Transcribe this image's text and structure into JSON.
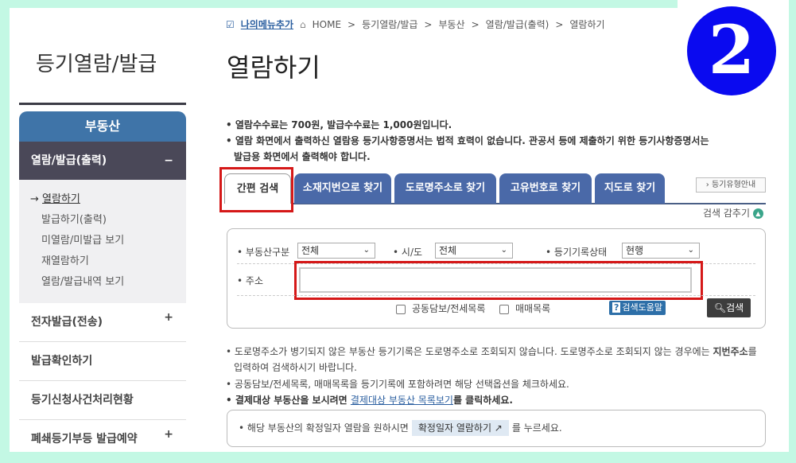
{
  "badge": "2",
  "sidebar": {
    "title": "등기열람/발급",
    "header": "부동산",
    "active_group": "열람/발급(출력)",
    "active_toggle": "−",
    "sub_items": [
      "열람하기",
      "발급하기(출력)",
      "미열람/미발급 보기",
      "재열람하기",
      "열람/발급내역 보기"
    ],
    "current_marker": "→",
    "items": [
      {
        "label": "전자발급(전송)",
        "toggle": "+"
      },
      {
        "label": "발급확인하기"
      },
      {
        "label": "등기신청사건처리현황"
      },
      {
        "label": "폐쇄등기부등 발급예약",
        "toggle": "+"
      }
    ]
  },
  "breadcrumb": {
    "fav": "나의메뉴추가",
    "items": [
      "HOME",
      "등기열람/발급",
      "부동산",
      "열람/발급(출력)",
      "열람하기"
    ],
    "sep": ">"
  },
  "page_title": "열람하기",
  "notes": [
    "열람수수료는 700원, 발급수수료는 1,000원입니다.",
    "열람 화면에서 출력하신 열람용 등기사항증명서는 법적 효력이 없습니다. 관공서 등에 제출하기 위한 등기사항증명서는",
    "발급용 화면에서 출력해야 합니다."
  ],
  "tabs": [
    "간편 검색",
    "소재지번으로 찾기",
    "도로명주소로 찾기",
    "고유번호로 찾기",
    "지도로 찾기"
  ],
  "guide_button": "등기유형안내",
  "hide_search": "검색 감추기",
  "search": {
    "property_type_label": "부동산구분",
    "property_type_value": "전체",
    "sido_label": "시/도",
    "sido_value": "전체",
    "status_label": "등기기록상태",
    "status_value": "현행",
    "address_label": "주소",
    "address_value": "",
    "check1": "공동담보/전세목록",
    "check2": "매매목록",
    "help": "검색도움말",
    "search_button": "검색"
  },
  "bottom_notes": {
    "n1a": "도로명주소가 병기되지 않은 부동산 등기기록은 도로명주소로 조회되지 않습니다. 도로명주소로 조회되지 않는 경우에는 ",
    "n1b": "지번주소",
    "n1c": "를",
    "n1d": "입력하여 검색하시기 바랍니다.",
    "n2": "공동담보/전세목록, 매매목록을 등기기록에 포함하려면 해당 선택옵션을 체크하세요.",
    "n3a": "결제대상 부동산을 보시려면 ",
    "n3link": "결제대상 부동산 목록보기",
    "n3b": "를 클릭하세요.",
    "box_a": "해당 부동산의 확정일자 열람을 원하시면",
    "box_btn": "확정일자 열람하기 ↗",
    "box_b": "를 누르세요."
  },
  "colors": {
    "frame": "#c3f8e4",
    "tab": "#4a69a8",
    "highlight": "#d51818",
    "badge": "#0a0af0"
  }
}
